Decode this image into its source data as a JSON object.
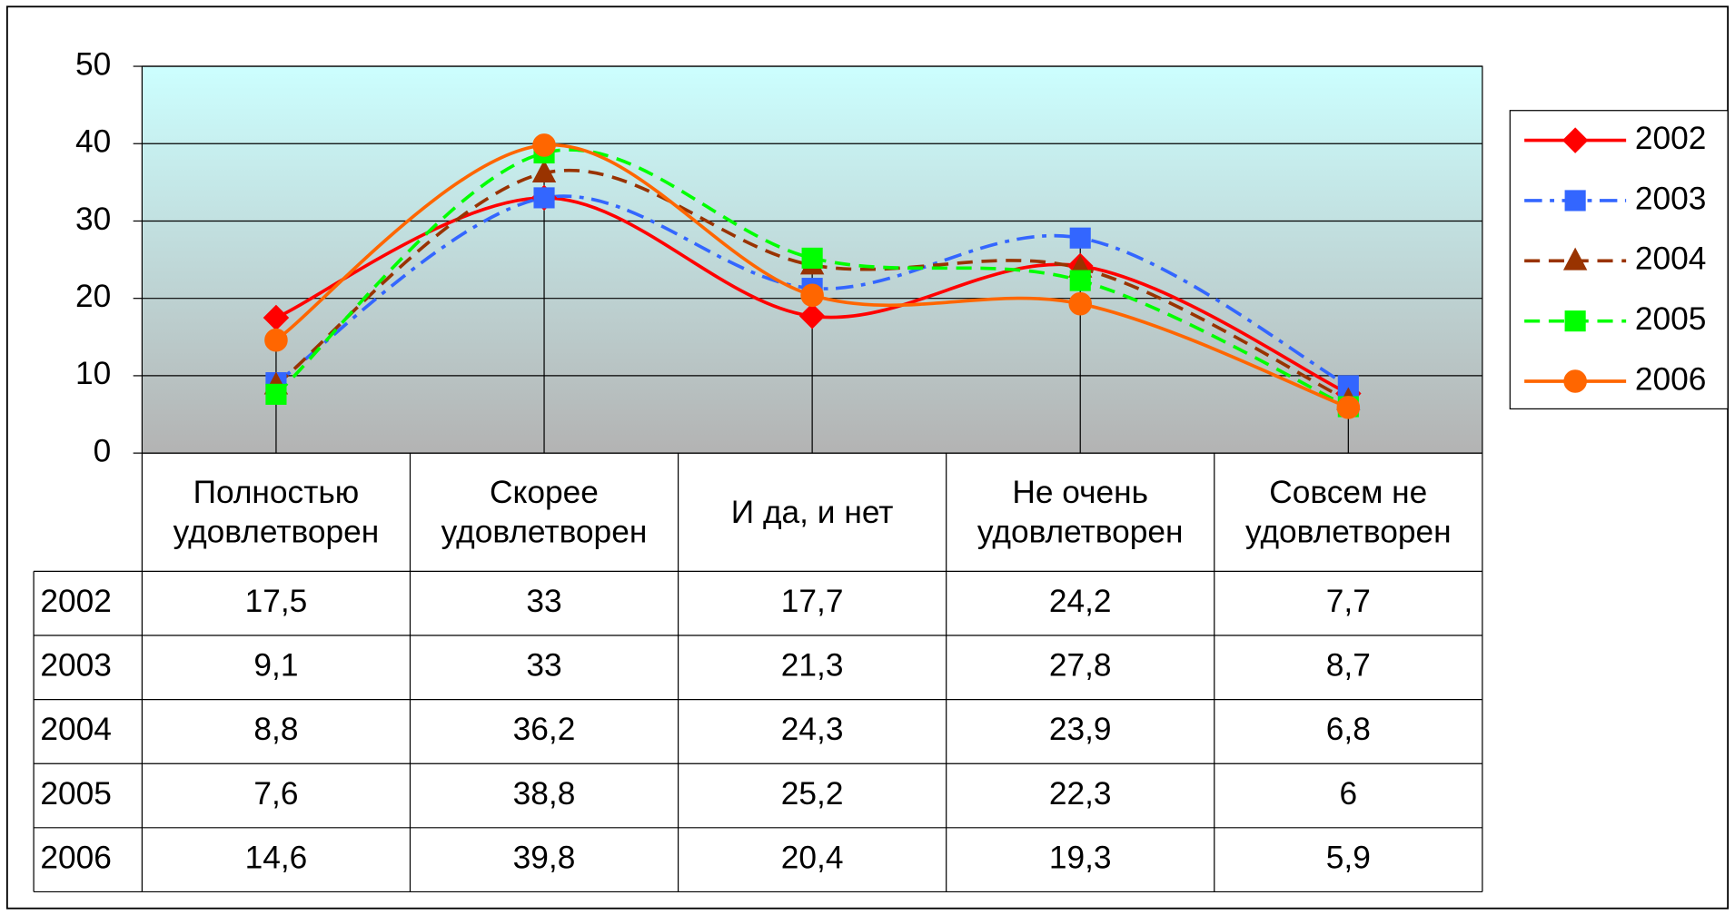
{
  "chart_data": {
    "type": "line",
    "categories": [
      "Полностью\nудовлетворен",
      "Скорее\nудовлетворен",
      "И да, и нет",
      "Не очень\nудовлетворен",
      "Совсем не\nудовлетворен"
    ],
    "series": [
      {
        "name": "2002",
        "color": "#ff0000",
        "marker": "diamond",
        "dash": "solid",
        "values": [
          17.5,
          33,
          17.7,
          24.2,
          7.7
        ],
        "value_labels": [
          "17,5",
          "33",
          "17,7",
          "24,2",
          "7,7"
        ]
      },
      {
        "name": "2003",
        "color": "#3366ff",
        "marker": "square",
        "dash": "dashdot",
        "values": [
          9.1,
          33,
          21.3,
          27.8,
          8.7
        ],
        "value_labels": [
          "9,1",
          "33",
          "21,3",
          "27,8",
          "8,7"
        ]
      },
      {
        "name": "2004",
        "color": "#993300",
        "marker": "triangle",
        "dash": "dash",
        "values": [
          8.8,
          36.2,
          24.3,
          23.9,
          6.8
        ],
        "value_labels": [
          "8,8",
          "36,2",
          "24,3",
          "23,9",
          "6,8"
        ]
      },
      {
        "name": "2005",
        "color": "#00ff00",
        "marker": "square",
        "dash": "dash",
        "values": [
          7.6,
          38.8,
          25.2,
          22.3,
          6
        ],
        "value_labels": [
          "7,6",
          "38,8",
          "25,2",
          "22,3",
          "6"
        ]
      },
      {
        "name": "2006",
        "color": "#ff6600",
        "marker": "circle",
        "dash": "solid",
        "values": [
          14.6,
          39.8,
          20.4,
          19.3,
          5.9
        ],
        "value_labels": [
          "14,6",
          "39,8",
          "20,4",
          "19,3",
          "5,9"
        ]
      }
    ],
    "ylim": [
      0,
      50
    ],
    "yticks": [
      0,
      10,
      20,
      30,
      40,
      50
    ],
    "grid": true,
    "legend": "right",
    "smooth": true
  }
}
